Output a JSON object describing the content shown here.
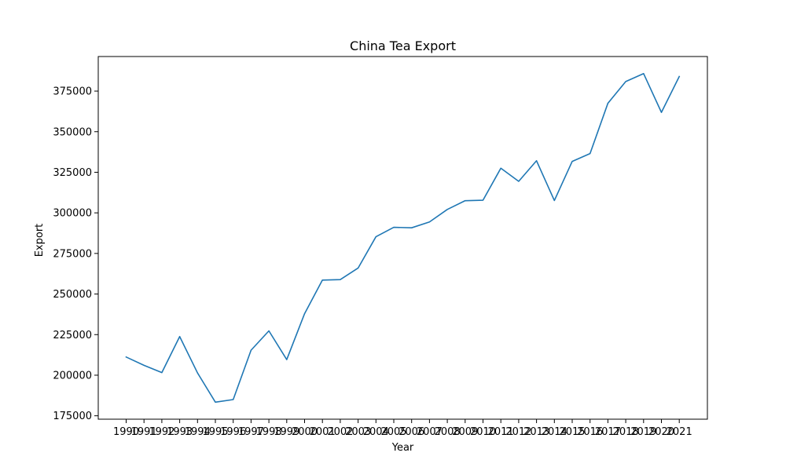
{
  "chart_data": {
    "type": "line",
    "title": "China Tea Export",
    "xlabel": "Year",
    "ylabel": "Export",
    "x": [
      "1990",
      "1991",
      "1992",
      "1993",
      "1994",
      "1995",
      "1996",
      "1997",
      "1998",
      "1999",
      "2000",
      "2001",
      "2002",
      "2003",
      "2004",
      "2005",
      "2006",
      "2007",
      "2008",
      "2009",
      "2010",
      "2011",
      "2012",
      "2013",
      "2014",
      "2015",
      "2016",
      "2017",
      "2018",
      "2019",
      "2020",
      "2021"
    ],
    "series": [
      {
        "color": "#1f77b4",
        "values": [
          211200,
          206100,
          201600,
          223800,
          201400,
          183400,
          185000,
          215400,
          227300,
          209600,
          237900,
          258600,
          258900,
          266000,
          285300,
          291100,
          290800,
          294400,
          302100,
          307500,
          307800,
          327500,
          319400,
          332100,
          307600,
          331700,
          336500,
          367500,
          380900,
          385800,
          361900,
          384000
        ]
      }
    ],
    "yticks": [
      175000,
      200000,
      225000,
      250000,
      275000,
      300000,
      325000,
      350000,
      375000
    ],
    "ylim": [
      172900,
      396300
    ],
    "grid": false,
    "legend": "none"
  }
}
